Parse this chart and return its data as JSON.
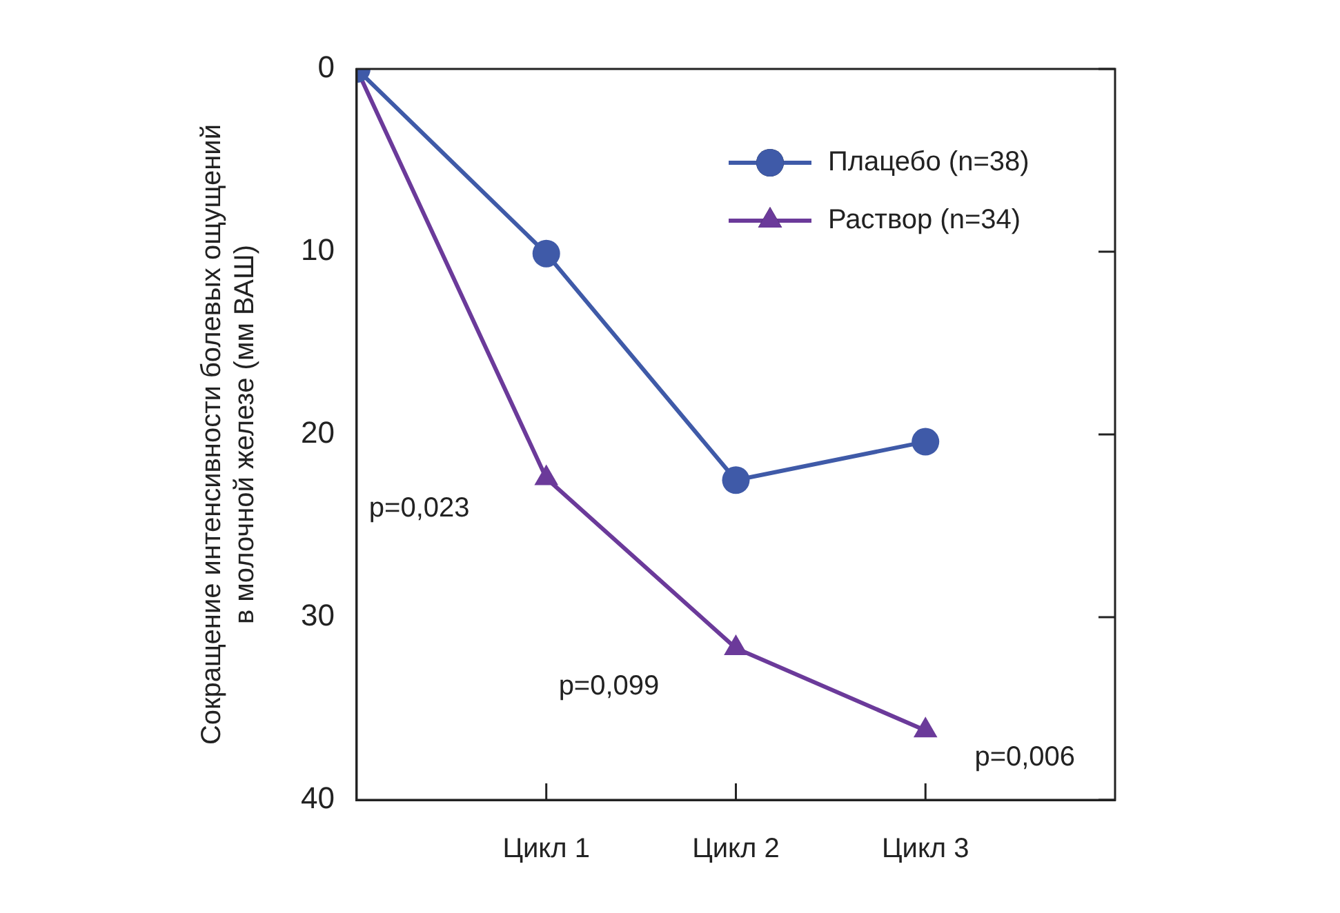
{
  "chart_data": {
    "type": "line",
    "ylabel": "Сокращение интенсивности болевых ощущений\nв молочной железе (мм ВАШ)",
    "categories": [
      null,
      "Цикл 1",
      "Цикл 2",
      "Цикл 3"
    ],
    "ylim": [
      40,
      0
    ],
    "yticks": [
      0,
      10,
      20,
      30,
      40
    ],
    "grid": false,
    "legend": "top right",
    "line_style": "solid",
    "series": [
      {
        "name": "Плацебо (n=38)",
        "color": "#3f5aa8",
        "marker": "circle",
        "values": [
          0,
          10.1,
          22.5,
          20.4
        ]
      },
      {
        "name": "Раствор (n=34)",
        "color": "#6b3a9a",
        "marker": "triangle",
        "values": [
          0,
          22.4,
          31.7,
          36.2
        ]
      }
    ],
    "annotations": [
      "p=0,023",
      "p=0,099",
      "p=0,006"
    ]
  }
}
